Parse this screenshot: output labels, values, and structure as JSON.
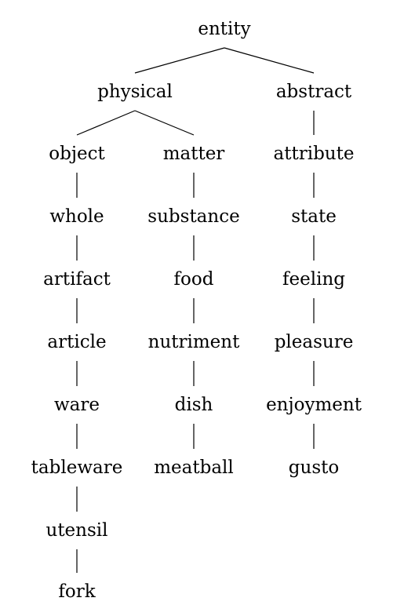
{
  "tree": {
    "nodes": {
      "entity": "entity",
      "physical": "physical",
      "abstract": "abstract",
      "object": "object",
      "matter": "matter",
      "attribute": "attribute",
      "whole": "whole",
      "substance": "substance",
      "state": "state",
      "artifact": "artifact",
      "food": "food",
      "feeling": "feeling",
      "article": "article",
      "nutriment": "nutriment",
      "pleasure": "pleasure",
      "ware": "ware",
      "dish": "dish",
      "enjoyment": "enjoyment",
      "tableware": "tableware",
      "meatball": "meatball",
      "gusto": "gusto",
      "utensil": "utensil",
      "fork": "fork"
    },
    "edges": [
      [
        "entity",
        "physical"
      ],
      [
        "entity",
        "abstract"
      ],
      [
        "physical",
        "object"
      ],
      [
        "physical",
        "matter"
      ],
      [
        "abstract",
        "attribute"
      ],
      [
        "object",
        "whole"
      ],
      [
        "whole",
        "artifact"
      ],
      [
        "artifact",
        "article"
      ],
      [
        "article",
        "ware"
      ],
      [
        "ware",
        "tableware"
      ],
      [
        "tableware",
        "utensil"
      ],
      [
        "utensil",
        "fork"
      ],
      [
        "matter",
        "substance"
      ],
      [
        "substance",
        "food"
      ],
      [
        "food",
        "nutriment"
      ],
      [
        "nutriment",
        "dish"
      ],
      [
        "dish",
        "meatball"
      ],
      [
        "attribute",
        "state"
      ],
      [
        "state",
        "feeling"
      ],
      [
        "feeling",
        "pleasure"
      ],
      [
        "pleasure",
        "enjoyment"
      ],
      [
        "enjoyment",
        "gusto"
      ]
    ]
  }
}
